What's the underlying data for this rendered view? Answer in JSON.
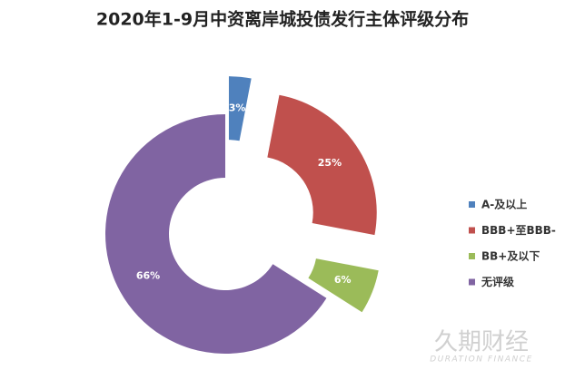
{
  "chart_data": {
    "type": "donut",
    "title": "2020年1-9月中资离岸城投债发行主体评级分布",
    "categories": [
      "A-及以上",
      "BBB+至BBB-",
      "BB+及以下",
      "无评级"
    ],
    "values": [
      3,
      25,
      6,
      66
    ],
    "value_labels": [
      "3%",
      "25%",
      "6%",
      "66%"
    ],
    "colors": [
      "#4f81bd",
      "#c0504d",
      "#9bbb59",
      "#8064a2"
    ],
    "exploded": [
      true,
      true,
      true,
      false
    ],
    "legend": "right",
    "watermark": {
      "name": "久期财经",
      "subtitle": "DURATION FINANCE"
    }
  }
}
